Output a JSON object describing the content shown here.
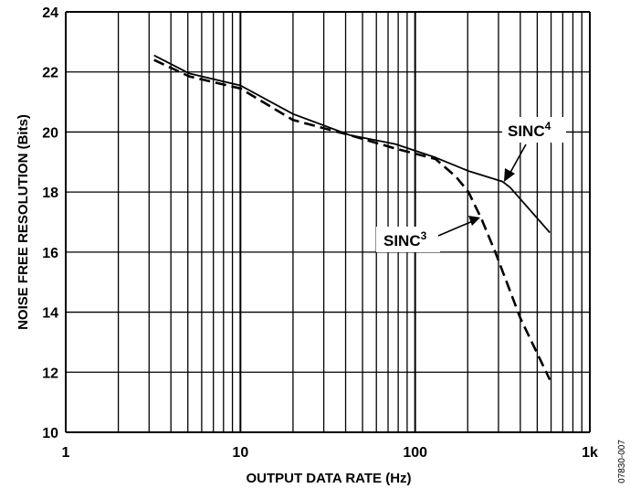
{
  "chart_data": {
    "type": "line",
    "title": "",
    "xlabel": "OUTPUT DATA RATE (Hz)",
    "ylabel": "NOISE FREE RESOLUTION (Bits)",
    "xscale": "log",
    "xlim": [
      1,
      1000
    ],
    "ylim": [
      10,
      24
    ],
    "x_ticks": [
      1,
      10,
      100,
      1000
    ],
    "x_tick_labels": [
      "1",
      "10",
      "100",
      "1k"
    ],
    "y_ticks": [
      10,
      12,
      14,
      16,
      18,
      20,
      22,
      24
    ],
    "y_tick_labels": [
      "10",
      "12",
      "14",
      "16",
      "18",
      "20",
      "22",
      "24"
    ],
    "grid": true,
    "watermark": "07830-007",
    "series": [
      {
        "name": "SINC4",
        "label_base": "SINC",
        "label_sup": "4",
        "style": "solid",
        "color": "#000000",
        "x": [
          3.2,
          5.1,
          10,
          20,
          42,
          77,
          131,
          202,
          316,
          350,
          590
        ],
        "y": [
          22.55,
          21.95,
          21.55,
          20.6,
          19.9,
          19.6,
          19.15,
          18.7,
          18.35,
          18.15,
          16.65
        ]
      },
      {
        "name": "SINC3",
        "label_base": "SINC",
        "label_sup": "3",
        "style": "dashed",
        "color": "#000000",
        "x": [
          3.2,
          5.1,
          10,
          20,
          42,
          77,
          131,
          172,
          202,
          240,
          290,
          400,
          590
        ],
        "y": [
          22.4,
          21.85,
          21.45,
          20.4,
          19.9,
          19.45,
          19.1,
          18.5,
          18.0,
          17.1,
          15.95,
          13.8,
          11.75
        ]
      }
    ]
  }
}
